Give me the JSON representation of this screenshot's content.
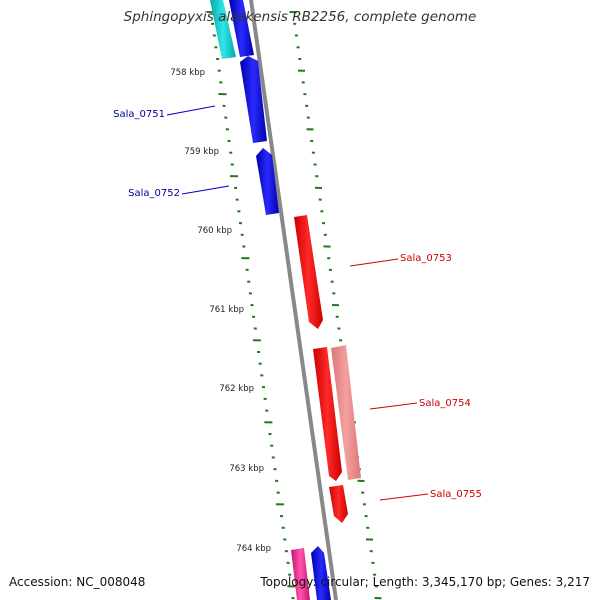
{
  "title": "Sphingopyxis alaskensis RB2256, complete genome",
  "accession": "Accession: NC_008048",
  "summary": "Topology: circular; Length: 3,345,170 bp; Genes: 3,217",
  "colors": {
    "backbone": "#888888",
    "tick": "#1f7a1f",
    "gene_cds_blue": "#0000ff",
    "gene_red": "#ff0000",
    "gene_pink": "#ee8888",
    "gene_cyan": "#00cccc",
    "gene_magenta": "#ff1493",
    "label_blue": "#000099",
    "label_red": "#cc0000"
  },
  "kbp_labels": [
    "758 kbp",
    "759 kbp",
    "760 kbp",
    "761 kbp",
    "762 kbp",
    "763 kbp",
    "764 kbp"
  ],
  "gene_labels": [
    "Sala_0751",
    "Sala_0752",
    "Sala_0753",
    "Sala_0754",
    "Sala_0755"
  ]
}
